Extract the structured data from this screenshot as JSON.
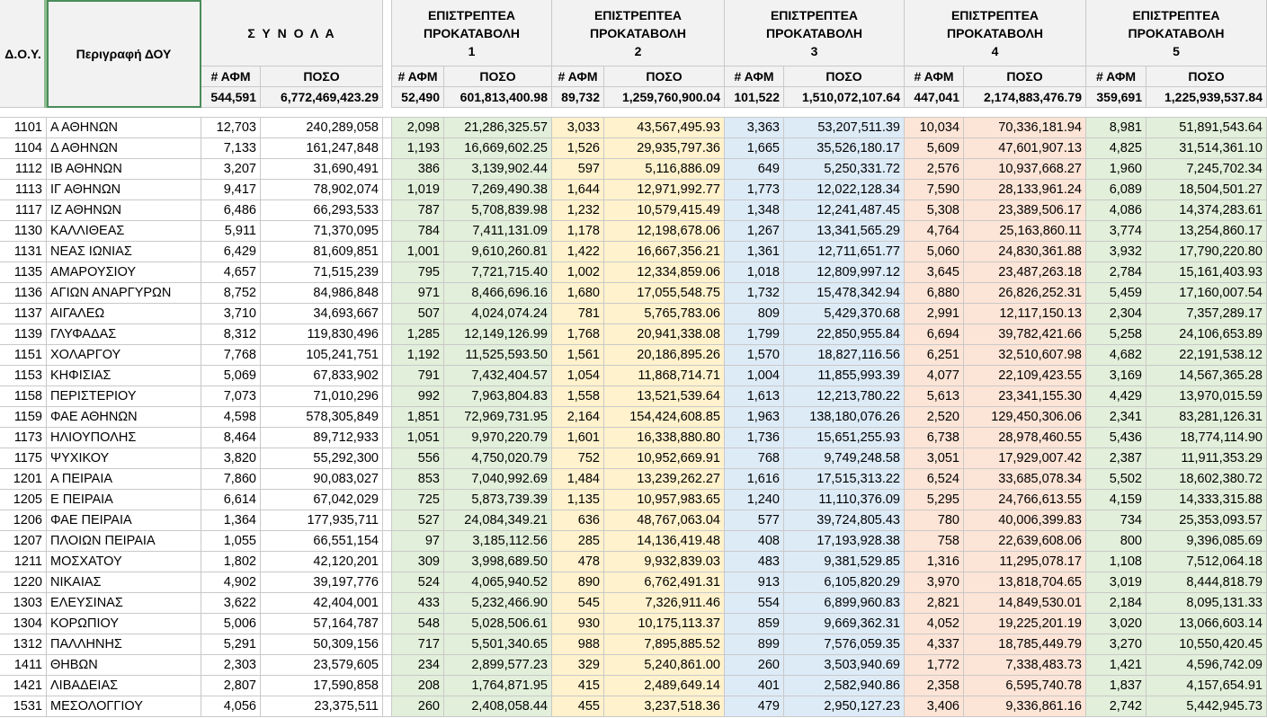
{
  "header": {
    "dou_label": "Δ.Ο.Υ.",
    "desc_label": "Περιγραφή ΔΟΥ",
    "totals_title": "Σ Υ Ν Ο Λ Α",
    "col_afm": "# ΑΦΜ",
    "col_poso": "ΠΟΣΟ",
    "groups": [
      {
        "line1": "ΕΠΙΣΤΡΕΠΤΕΑ",
        "line2": "ΠΡΟΚΑΤΑΒΟΛΗ",
        "num": "1"
      },
      {
        "line1": "ΕΠΙΣΤΡΕΠΤΕΑ",
        "line2": "ΠΡΟΚΑΤΑΒΟΛΗ",
        "num": "2"
      },
      {
        "line1": "ΕΠΙΣΤΡΕΠΤΕΑ",
        "line2": "ΠΡΟΚΑΤΑΒΟΛΗ",
        "num": "3"
      },
      {
        "line1": "ΕΠΙΣΤΡΕΠΤΕΑ",
        "line2": "ΠΡΟΚΑΤΑΒΟΛΗ",
        "num": "4"
      },
      {
        "line1": "ΕΠΙΣΤΡΕΠΤΕΑ",
        "line2": "ΠΡΟΚΑΤΑΒΟΛΗ",
        "num": "5"
      }
    ],
    "totals": [
      "544,591",
      "6,772,469,423.29",
      "52,490",
      "601,813,400.98",
      "89,732",
      "1,259,760,900.04",
      "101,522",
      "1,510,072,107.64",
      "447,041",
      "2,174,883,476.79",
      "359,691",
      "1,225,939,537.84"
    ]
  },
  "colors": {
    "green": "#e2efda",
    "yellow": "#fff2cc",
    "blue": "#ddebf7",
    "pink": "#fce4d6"
  },
  "rows": [
    [
      "1101",
      "Α ΑΘΗΝΩΝ",
      "12,703",
      "240,289,058",
      "2,098",
      "21,286,325.57",
      "3,033",
      "43,567,495.93",
      "3,363",
      "53,207,511.39",
      "10,034",
      "70,336,181.94",
      "8,981",
      "51,891,543.64"
    ],
    [
      "1104",
      "Δ ΑΘΗΝΩΝ",
      "7,133",
      "161,247,848",
      "1,193",
      "16,669,602.25",
      "1,526",
      "29,935,797.36",
      "1,665",
      "35,526,180.17",
      "5,609",
      "47,601,907.13",
      "4,825",
      "31,514,361.10"
    ],
    [
      "1112",
      "ΙΒ ΑΘΗΝΩΝ",
      "3,207",
      "31,690,491",
      "386",
      "3,139,902.44",
      "597",
      "5,116,886.09",
      "649",
      "5,250,331.72",
      "2,576",
      "10,937,668.27",
      "1,960",
      "7,245,702.34"
    ],
    [
      "1113",
      "ΙΓ ΑΘΗΝΩΝ",
      "9,417",
      "78,902,074",
      "1,019",
      "7,269,490.38",
      "1,644",
      "12,971,992.77",
      "1,773",
      "12,022,128.34",
      "7,590",
      "28,133,961.24",
      "6,089",
      "18,504,501.27"
    ],
    [
      "1117",
      "ΙΖ ΑΘΗΝΩΝ",
      "6,486",
      "66,293,533",
      "787",
      "5,708,839.98",
      "1,232",
      "10,579,415.49",
      "1,348",
      "12,241,487.45",
      "5,308",
      "23,389,506.17",
      "4,086",
      "14,374,283.61"
    ],
    [
      "1130",
      "ΚΑΛΛΙΘΕΑΣ",
      "5,911",
      "71,370,095",
      "784",
      "7,411,131.09",
      "1,178",
      "12,198,678.06",
      "1,267",
      "13,341,565.29",
      "4,764",
      "25,163,860.11",
      "3,774",
      "13,254,860.17"
    ],
    [
      "1131",
      "ΝΕΑΣ ΙΩΝΙΑΣ",
      "6,429",
      "81,609,851",
      "1,001",
      "9,610,260.81",
      "1,422",
      "16,667,356.21",
      "1,361",
      "12,711,651.77",
      "5,060",
      "24,830,361.88",
      "3,932",
      "17,790,220.80"
    ],
    [
      "1135",
      "ΑΜΑΡΟΥΣΙΟΥ",
      "4,657",
      "71,515,239",
      "795",
      "7,721,715.40",
      "1,002",
      "12,334,859.06",
      "1,018",
      "12,809,997.12",
      "3,645",
      "23,487,263.18",
      "2,784",
      "15,161,403.93"
    ],
    [
      "1136",
      "ΑΓΙΩΝ ΑΝΑΡΓΥΡΩΝ",
      "8,752",
      "84,986,848",
      "971",
      "8,466,696.16",
      "1,680",
      "17,055,548.75",
      "1,732",
      "15,478,342.94",
      "6,880",
      "26,826,252.31",
      "5,459",
      "17,160,007.54"
    ],
    [
      "1137",
      "ΑΙΓΑΛΕΩ",
      "3,710",
      "34,693,667",
      "507",
      "4,024,074.24",
      "781",
      "5,765,783.06",
      "809",
      "5,429,370.68",
      "2,991",
      "12,117,150.13",
      "2,304",
      "7,357,289.17"
    ],
    [
      "1139",
      "ΓΛΥΦΑΔΑΣ",
      "8,312",
      "119,830,496",
      "1,285",
      "12,149,126.99",
      "1,768",
      "20,941,338.08",
      "1,799",
      "22,850,955.84",
      "6,694",
      "39,782,421.66",
      "5,258",
      "24,106,653.89"
    ],
    [
      "1151",
      "ΧΟΛΑΡΓΟΥ",
      "7,768",
      "105,241,751",
      "1,192",
      "11,525,593.50",
      "1,561",
      "20,186,895.26",
      "1,570",
      "18,827,116.56",
      "6,251",
      "32,510,607.98",
      "4,682",
      "22,191,538.12"
    ],
    [
      "1153",
      "ΚΗΦΙΣΙΑΣ",
      "5,069",
      "67,833,902",
      "791",
      "7,432,404.57",
      "1,054",
      "11,868,714.71",
      "1,004",
      "11,855,993.39",
      "4,077",
      "22,109,423.55",
      "3,169",
      "14,567,365.28"
    ],
    [
      "1158",
      "ΠΕΡΙΣΤΕΡΙΟΥ",
      "7,073",
      "71,010,296",
      "992",
      "7,963,804.83",
      "1,558",
      "13,521,539.64",
      "1,613",
      "12,213,780.22",
      "5,613",
      "23,341,155.30",
      "4,429",
      "13,970,015.59"
    ],
    [
      "1159",
      "ΦΑΕ ΑΘΗΝΩΝ",
      "4,598",
      "578,305,849",
      "1,851",
      "72,969,731.95",
      "2,164",
      "154,424,608.85",
      "1,963",
      "138,180,076.26",
      "2,520",
      "129,450,306.06",
      "2,341",
      "83,281,126.31"
    ],
    [
      "1173",
      "ΗΛΙΟΥΠΟΛΗΣ",
      "8,464",
      "89,712,933",
      "1,051",
      "9,970,220.79",
      "1,601",
      "16,338,880.80",
      "1,736",
      "15,651,255.93",
      "6,738",
      "28,978,460.55",
      "5,436",
      "18,774,114.90"
    ],
    [
      "1175",
      "ΨΥΧΙΚΟΥ",
      "3,820",
      "55,292,300",
      "556",
      "4,750,020.79",
      "752",
      "10,952,669.91",
      "768",
      "9,749,248.58",
      "3,051",
      "17,929,007.42",
      "2,387",
      "11,911,353.29"
    ],
    [
      "1201",
      "Α ΠΕΙΡΑΙΑ",
      "7,860",
      "90,083,027",
      "853",
      "7,040,992.69",
      "1,484",
      "13,239,262.27",
      "1,616",
      "17,515,313.22",
      "6,524",
      "33,685,078.34",
      "5,502",
      "18,602,380.72"
    ],
    [
      "1205",
      "Ε ΠΕΙΡΑΙΑ",
      "6,614",
      "67,042,029",
      "725",
      "5,873,739.39",
      "1,135",
      "10,957,983.65",
      "1,240",
      "11,110,376.09",
      "5,295",
      "24,766,613.55",
      "4,159",
      "14,333,315.88"
    ],
    [
      "1206",
      "ΦΑΕ ΠΕΙΡΑΙΑ",
      "1,364",
      "177,935,711",
      "527",
      "24,084,349.21",
      "636",
      "48,767,063.04",
      "577",
      "39,724,805.43",
      "780",
      "40,006,399.83",
      "734",
      "25,353,093.57"
    ],
    [
      "1207",
      "ΠΛΟΙΩΝ ΠΕΙΡΑΙΑ",
      "1,055",
      "66,551,154",
      "97",
      "3,185,112.56",
      "285",
      "14,136,419.48",
      "408",
      "17,193,928.38",
      "758",
      "22,639,608.06",
      "800",
      "9,396,085.69"
    ],
    [
      "1211",
      "ΜΟΣΧΑΤΟΥ",
      "1,802",
      "42,120,201",
      "309",
      "3,998,689.50",
      "478",
      "9,932,839.03",
      "483",
      "9,381,529.85",
      "1,316",
      "11,295,078.17",
      "1,108",
      "7,512,064.18"
    ],
    [
      "1220",
      "ΝΙΚΑΙΑΣ",
      "4,902",
      "39,197,776",
      "524",
      "4,065,940.52",
      "890",
      "6,762,491.31",
      "913",
      "6,105,820.29",
      "3,970",
      "13,818,704.65",
      "3,019",
      "8,444,818.79"
    ],
    [
      "1303",
      "ΕΛΕΥΣΙΝΑΣ",
      "3,622",
      "42,404,001",
      "433",
      "5,232,466.90",
      "545",
      "7,326,911.46",
      "554",
      "6,899,960.83",
      "2,821",
      "14,849,530.01",
      "2,184",
      "8,095,131.33"
    ],
    [
      "1304",
      "ΚΟΡΩΠΙΟΥ",
      "5,006",
      "57,164,787",
      "548",
      "5,028,506.61",
      "930",
      "10,175,113.37",
      "859",
      "9,669,362.31",
      "4,052",
      "19,225,201.19",
      "3,020",
      "13,066,603.14"
    ],
    [
      "1312",
      "ΠΑΛΛΗΝΗΣ",
      "5,291",
      "50,309,156",
      "717",
      "5,501,340.65",
      "988",
      "7,895,885.52",
      "899",
      "7,576,059.35",
      "4,337",
      "18,785,449.79",
      "3,270",
      "10,550,420.45"
    ],
    [
      "1411",
      "ΘΗΒΩΝ",
      "2,303",
      "23,579,605",
      "234",
      "2,899,577.23",
      "329",
      "5,240,861.00",
      "260",
      "3,503,940.69",
      "1,772",
      "7,338,483.73",
      "1,421",
      "4,596,742.09"
    ],
    [
      "1421",
      "ΛΙΒΑΔΕΙΑΣ",
      "2,807",
      "17,590,858",
      "208",
      "1,764,871.95",
      "415",
      "2,489,649.14",
      "401",
      "2,582,940.86",
      "2,358",
      "6,595,740.78",
      "1,837",
      "4,157,654.91"
    ],
    [
      "1531",
      "ΜΕΣΟΛΟΓΓΙΟΥ",
      "4,056",
      "23,375,511",
      "260",
      "2,408,058.44",
      "455",
      "3,237,518.36",
      "479",
      "2,950,127.23",
      "3,406",
      "9,336,861.16",
      "2,742",
      "5,442,945.73"
    ]
  ]
}
